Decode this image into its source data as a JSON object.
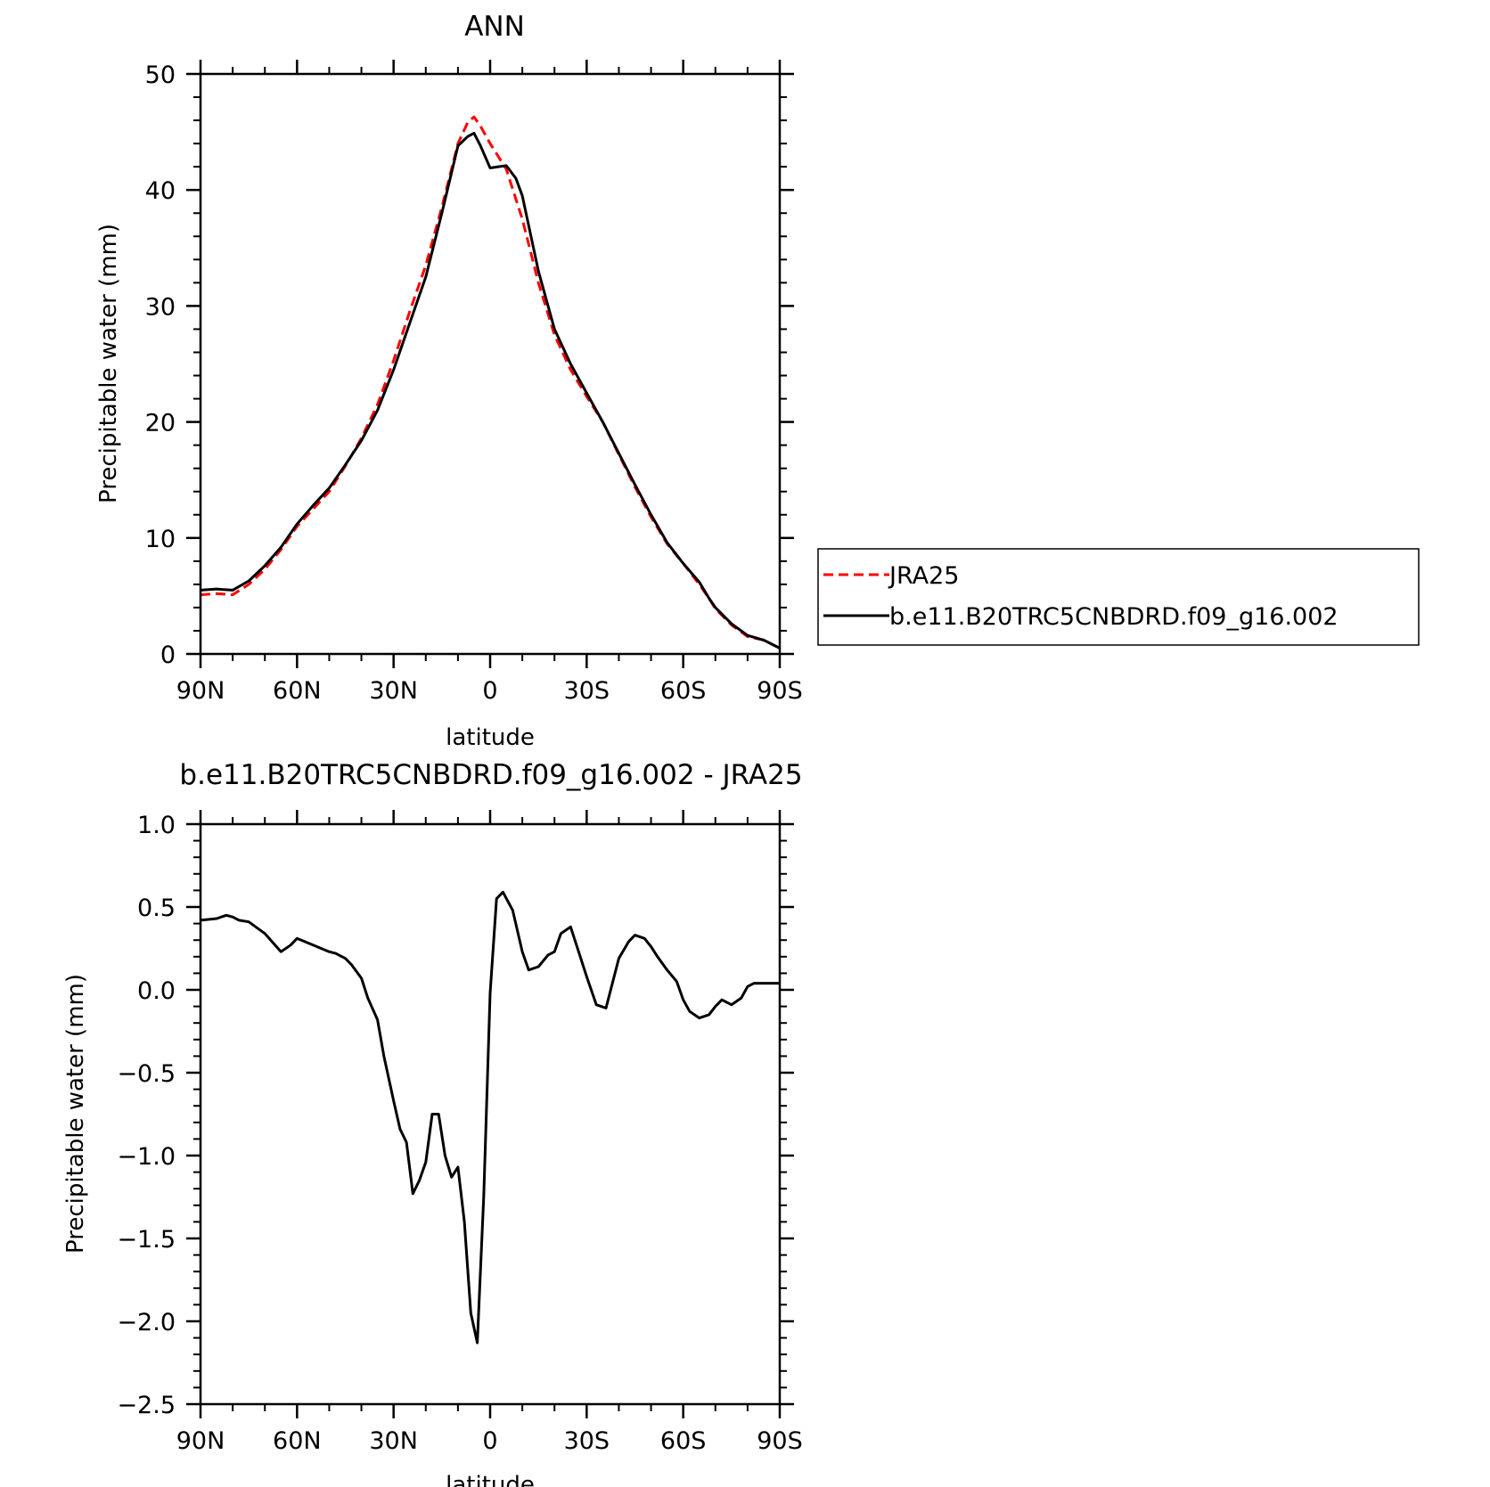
{
  "chart_data": [
    {
      "type": "line",
      "title": "ANN",
      "xlabel": "latitude",
      "ylabel": "Precipitable water (mm)",
      "xlim": [
        90,
        -90
      ],
      "ylim": [
        0,
        50
      ],
      "xticks": [
        90,
        60,
        30,
        0,
        -30,
        -60,
        -90
      ],
      "xtick_labels": [
        "90N",
        "60N",
        "30N",
        "0",
        "30S",
        "60S",
        "90S"
      ],
      "yticks": [
        0,
        10,
        20,
        30,
        40,
        50
      ],
      "ytick_labels": [
        "0",
        "10",
        "20",
        "30",
        "40",
        "50"
      ],
      "grid": false,
      "legend_position": "right",
      "series": [
        {
          "name": "JRA25",
          "color": "#ff0000",
          "dash": "dashed",
          "x": [
            90,
            85,
            80,
            75,
            70,
            65,
            60,
            55,
            50,
            45,
            40,
            35,
            30,
            25,
            20,
            15,
            10,
            7,
            5,
            3,
            0,
            -5,
            -10,
            -15,
            -20,
            -25,
            -30,
            -35,
            -40,
            -45,
            -50,
            -55,
            -60,
            -65,
            -68,
            -70,
            -75,
            -80,
            -85,
            -90
          ],
          "y": [
            5.1,
            5.2,
            5.1,
            6.0,
            7.3,
            9.0,
            11.0,
            12.5,
            14.0,
            16.2,
            18.6,
            21.5,
            25.3,
            29.5,
            33.5,
            38.5,
            44.0,
            45.8,
            46.3,
            45.5,
            44.0,
            41.8,
            37.5,
            32.0,
            27.5,
            24.5,
            22.2,
            20.0,
            17.2,
            14.4,
            11.8,
            9.5,
            7.8,
            6.0,
            4.8,
            3.9,
            2.5,
            1.5,
            1.2,
            0.5
          ]
        },
        {
          "name": "b.e11.B20TRC5CNBDRD.f09_g16.002",
          "color": "#000000",
          "dash": "solid",
          "x": [
            90,
            85,
            80,
            75,
            70,
            65,
            60,
            55,
            50,
            45,
            40,
            35,
            30,
            25,
            20,
            15,
            10,
            7,
            5,
            3,
            0,
            -5,
            -8,
            -10,
            -15,
            -20,
            -25,
            -30,
            -35,
            -40,
            -45,
            -50,
            -55,
            -60,
            -65,
            -68,
            -70,
            -75,
            -80,
            -85,
            -90
          ],
          "y": [
            5.5,
            5.6,
            5.5,
            6.3,
            7.6,
            9.2,
            11.2,
            12.8,
            14.3,
            16.3,
            18.4,
            21.0,
            24.5,
            28.5,
            32.5,
            38.0,
            43.8,
            44.6,
            44.9,
            43.8,
            41.9,
            42.1,
            41.0,
            39.5,
            33.0,
            28.0,
            25.0,
            22.5,
            20.0,
            17.3,
            14.6,
            12.0,
            9.6,
            7.8,
            6.2,
            4.8,
            4.0,
            2.6,
            1.6,
            1.2,
            0.5
          ]
        }
      ]
    },
    {
      "type": "line",
      "title": "b.e11.B20TRC5CNBDRD.f09_g16.002 - JRA25",
      "xlabel": "latitude",
      "ylabel": "Precipitable water (mm)",
      "xlim": [
        90,
        -90
      ],
      "ylim": [
        -2.5,
        1.0
      ],
      "xticks": [
        90,
        60,
        30,
        0,
        -30,
        -60,
        -90
      ],
      "xtick_labels": [
        "90N",
        "60N",
        "30N",
        "0",
        "30S",
        "60S",
        "90S"
      ],
      "yticks": [
        -2.5,
        -2.0,
        -1.5,
        -1.0,
        -0.5,
        0.0,
        0.5,
        1.0
      ],
      "ytick_labels": [
        "−2.5",
        "−2.0",
        "−1.5",
        "−1.0",
        "−0.5",
        "0.0",
        "0.5",
        "1.0"
      ],
      "grid": false,
      "series": [
        {
          "color": "#000000",
          "dash": "solid",
          "x": [
            90,
            85,
            82,
            80,
            78,
            75,
            70,
            65,
            62,
            60,
            55,
            50,
            48,
            45,
            43,
            40,
            38,
            35,
            33,
            30,
            28,
            26,
            24,
            22,
            20,
            18,
            16,
            14,
            12,
            10,
            8,
            6,
            4,
            2,
            0,
            -2,
            -4,
            -7,
            -10,
            -12,
            -15,
            -18,
            -20,
            -22,
            -25,
            -27,
            -30,
            -33,
            -36,
            -38,
            -40,
            -43,
            -45,
            -48,
            -50,
            -52,
            -55,
            -58,
            -60,
            -62,
            -65,
            -68,
            -70,
            -72,
            -75,
            -78,
            -80,
            -82,
            -85,
            -88,
            -90
          ],
          "y": [
            0.42,
            0.43,
            0.45,
            0.44,
            0.42,
            0.41,
            0.34,
            0.23,
            0.27,
            0.31,
            0.27,
            0.23,
            0.22,
            0.19,
            0.15,
            0.07,
            -0.05,
            -0.18,
            -0.4,
            -0.67,
            -0.84,
            -0.92,
            -1.23,
            -1.15,
            -1.04,
            -0.75,
            -0.75,
            -1.0,
            -1.13,
            -1.07,
            -1.4,
            -1.95,
            -2.13,
            -1.25,
            -0.02,
            0.55,
            0.59,
            0.48,
            0.23,
            0.12,
            0.14,
            0.21,
            0.23,
            0.34,
            0.38,
            0.26,
            0.08,
            -0.09,
            -0.11,
            0.04,
            0.19,
            0.29,
            0.33,
            0.31,
            0.26,
            0.2,
            0.12,
            0.05,
            -0.06,
            -0.13,
            -0.17,
            -0.15,
            -0.1,
            -0.06,
            -0.09,
            -0.05,
            0.02,
            0.04,
            0.04,
            0.04,
            0.04
          ]
        }
      ]
    }
  ]
}
